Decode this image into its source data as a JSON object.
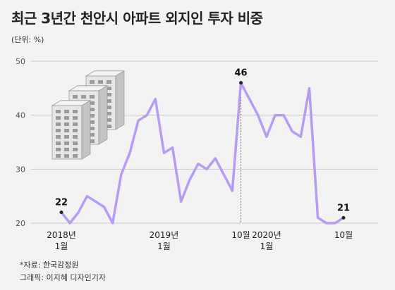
{
  "header": {
    "title": "최근 3년간 천안시 아파트 외지인 투자 비중",
    "unit": "(단위: %)"
  },
  "footer": {
    "source": "*자료: 한국감정원",
    "credit": "그래픽: 이지혜 디자인기자"
  },
  "colors": {
    "line": "#b69cf2",
    "grid": "#c9c9c9",
    "background": "#f3f3f3"
  },
  "chart_data": {
    "type": "line",
    "title": "최근 3년간 천안시 아파트 외지인 투자 비중",
    "ylabel": "(단위: %)",
    "ylim": [
      20,
      50
    ],
    "yticks": [
      20,
      30,
      40,
      50
    ],
    "grid": "horizontal",
    "x": [
      "2018-01",
      "2018-02",
      "2018-03",
      "2018-04",
      "2018-05",
      "2018-06",
      "2018-07",
      "2018-08",
      "2018-09",
      "2018-10",
      "2018-11",
      "2018-12",
      "2019-01",
      "2019-02",
      "2019-03",
      "2019-04",
      "2019-05",
      "2019-06",
      "2019-07",
      "2019-08",
      "2019-09",
      "2019-10",
      "2019-11",
      "2019-12",
      "2020-01",
      "2020-02",
      "2020-03",
      "2020-04",
      "2020-05",
      "2020-06",
      "2020-07",
      "2020-08",
      "2020-09",
      "2020-10"
    ],
    "values": [
      22,
      20,
      22,
      25,
      24,
      23,
      20,
      29,
      33,
      39,
      40,
      43,
      33,
      34,
      24,
      28,
      31,
      30,
      32,
      29,
      26,
      46,
      43,
      40,
      36,
      40,
      40,
      37,
      36,
      45,
      21,
      20,
      20,
      21
    ],
    "x_tick_labels": [
      {
        "index": 0,
        "lines": [
          "2018년",
          "1월"
        ]
      },
      {
        "index": 12,
        "lines": [
          "2019년",
          "1월"
        ]
      },
      {
        "index": 21,
        "lines": [
          "10월"
        ]
      },
      {
        "index": 24,
        "lines": [
          "2020년",
          "1월"
        ]
      },
      {
        "index": 33,
        "lines": [
          "10월"
        ]
      }
    ],
    "annotations": [
      {
        "index": 0,
        "label": "22"
      },
      {
        "index": 21,
        "label": "46",
        "dashed": true
      },
      {
        "index": 33,
        "label": "21"
      }
    ]
  }
}
